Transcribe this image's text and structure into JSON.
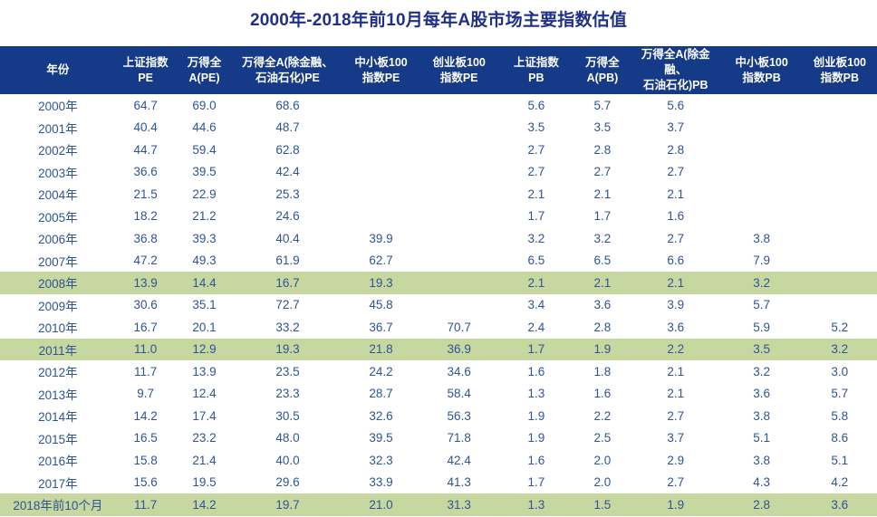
{
  "title": "2000年-2018年前10月每年A股市场主要指数估值",
  "colors": {
    "title_text": "#203087",
    "header_bg": "#153A88",
    "header_text": "#FFFFFF",
    "data_text": "#2E5496",
    "highlight_row_bg": "#C6D7A0",
    "row_bg": "#FFFFFF"
  },
  "chart_data": {
    "type": "table",
    "title": "2000年-2018年前10月每年A股市场主要指数估值",
    "columns": [
      {
        "label": "年份"
      },
      {
        "label": "上证指数\nPE"
      },
      {
        "label": "万得全\nA(PE)"
      },
      {
        "label": "万得全A(除金融、\n石油石化)PE"
      },
      {
        "label": "中小板100\n指数PE"
      },
      {
        "label": "创业板100\n指数PE"
      },
      {
        "label": "上证指数\nPB"
      },
      {
        "label": "万得全\nA(PB)"
      },
      {
        "label": "万得全A(除金融、\n石油石化)PB"
      },
      {
        "label": "中小板100\n指数PB"
      },
      {
        "label": "创业板100\n指数PB"
      }
    ],
    "rows": [
      {
        "highlight": false,
        "cells": [
          "2000年",
          "64.7",
          "69.0",
          "68.6",
          "",
          "",
          "5.6",
          "5.7",
          "5.6",
          "",
          ""
        ]
      },
      {
        "highlight": false,
        "cells": [
          "2001年",
          "40.4",
          "44.6",
          "48.7",
          "",
          "",
          "3.5",
          "3.5",
          "3.7",
          "",
          ""
        ]
      },
      {
        "highlight": false,
        "cells": [
          "2002年",
          "44.7",
          "59.4",
          "62.8",
          "",
          "",
          "2.7",
          "2.8",
          "2.8",
          "",
          ""
        ]
      },
      {
        "highlight": false,
        "cells": [
          "2003年",
          "36.6",
          "39.5",
          "42.4",
          "",
          "",
          "2.7",
          "2.7",
          "2.7",
          "",
          ""
        ]
      },
      {
        "highlight": false,
        "cells": [
          "2004年",
          "21.5",
          "22.9",
          "25.3",
          "",
          "",
          "2.1",
          "2.1",
          "2.1",
          "",
          ""
        ]
      },
      {
        "highlight": false,
        "cells": [
          "2005年",
          "18.2",
          "21.2",
          "24.6",
          "",
          "",
          "1.7",
          "1.7",
          "1.6",
          "",
          ""
        ]
      },
      {
        "highlight": false,
        "cells": [
          "2006年",
          "36.8",
          "39.3",
          "40.4",
          "39.9",
          "",
          "3.2",
          "3.2",
          "2.7",
          "3.8",
          ""
        ]
      },
      {
        "highlight": false,
        "cells": [
          "2007年",
          "47.2",
          "49.3",
          "61.9",
          "62.7",
          "",
          "6.5",
          "6.5",
          "6.6",
          "7.9",
          ""
        ]
      },
      {
        "highlight": true,
        "cells": [
          "2008年",
          "13.9",
          "14.4",
          "16.7",
          "19.3",
          "",
          "2.1",
          "2.1",
          "2.1",
          "3.2",
          ""
        ]
      },
      {
        "highlight": false,
        "cells": [
          "2009年",
          "30.6",
          "35.1",
          "72.7",
          "45.8",
          "",
          "3.4",
          "3.6",
          "3.9",
          "5.7",
          ""
        ]
      },
      {
        "highlight": false,
        "cells": [
          "2010年",
          "16.7",
          "20.1",
          "33.2",
          "36.7",
          "70.7",
          "2.4",
          "2.8",
          "3.6",
          "5.9",
          "5.2"
        ]
      },
      {
        "highlight": true,
        "cells": [
          "2011年",
          "11.0",
          "12.9",
          "19.3",
          "21.8",
          "36.9",
          "1.7",
          "1.9",
          "2.2",
          "3.5",
          "3.2"
        ]
      },
      {
        "highlight": false,
        "cells": [
          "2012年",
          "11.7",
          "13.9",
          "23.5",
          "24.2",
          "34.6",
          "1.6",
          "1.8",
          "2.1",
          "3.2",
          "3.0"
        ]
      },
      {
        "highlight": false,
        "cells": [
          "2013年",
          "9.7",
          "12.4",
          "23.3",
          "28.7",
          "58.4",
          "1.3",
          "1.6",
          "2.1",
          "3.6",
          "5.7"
        ]
      },
      {
        "highlight": false,
        "cells": [
          "2014年",
          "14.2",
          "17.4",
          "30.5",
          "32.6",
          "56.3",
          "1.9",
          "2.2",
          "2.7",
          "3.8",
          "5.8"
        ]
      },
      {
        "highlight": false,
        "cells": [
          "2015年",
          "16.5",
          "23.2",
          "48.0",
          "39.5",
          "71.8",
          "1.9",
          "2.5",
          "3.7",
          "5.1",
          "8.6"
        ]
      },
      {
        "highlight": false,
        "cells": [
          "2016年",
          "15.8",
          "21.4",
          "40.0",
          "32.3",
          "42.4",
          "1.6",
          "2.0",
          "2.9",
          "3.8",
          "5.1"
        ]
      },
      {
        "highlight": false,
        "cells": [
          "2017年",
          "15.6",
          "19.5",
          "29.6",
          "33.9",
          "41.3",
          "1.7",
          "2.0",
          "2.7",
          "4.3",
          "4.2"
        ]
      },
      {
        "highlight": true,
        "cells": [
          "2018年前10个月",
          "11.7",
          "14.2",
          "19.7",
          "21.0",
          "31.3",
          "1.3",
          "1.5",
          "1.9",
          "2.8",
          "3.6"
        ]
      }
    ]
  }
}
